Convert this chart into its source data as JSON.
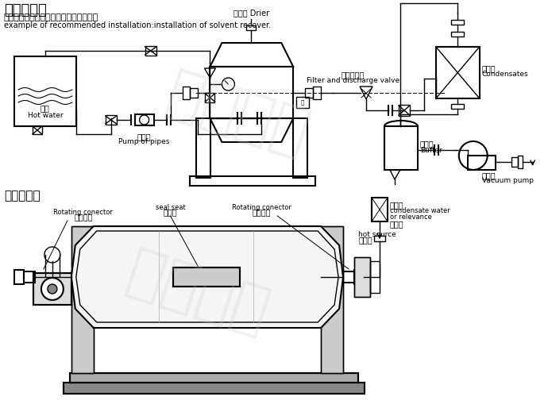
{
  "title1": "安装示意图",
  "subtitle1_cn": "推荐的工艺安置示范：溶剂回收工艺安置",
  "subtitle1_en": "example of recommended installation:installation of solvent recover.",
  "title2": "简易结构图",
  "bg_color": "#ffffff",
  "line_color": "#000000",
  "labels": {
    "drier_cn": "干燥机 Drier",
    "filter_cn": "过滤放空阀",
    "filter_en": "Filter and discharge valve",
    "condensates_cn": "冷凝器",
    "condensates_en": "Condensates",
    "vacuum_cn": "真空泵",
    "vacuum_en": "Vacuum pump",
    "buffer_cn": "缓冲罐",
    "buffer_en": "Buffer",
    "hotwater_cn": "热水",
    "hotwater_en": "Hot water",
    "pump_cn": "管道泵",
    "pump_en": "Pump of pipes",
    "rotating1_en": "Rotating conector",
    "rotating1_cn": "旋转接头",
    "sealseat_en": "seal seat",
    "sealseat_cn": "密封座",
    "rotating2_en": "Rotating conector",
    "rotating2_cn": "旋转接头",
    "hotsource_en": "hot source",
    "hotsource_cn": "进热源",
    "condensate2_cn": "冷凝器",
    "condensate2_en": "condensate water",
    "condensate2_en2": "or relevance",
    "huiflow_cn": "或回流"
  }
}
